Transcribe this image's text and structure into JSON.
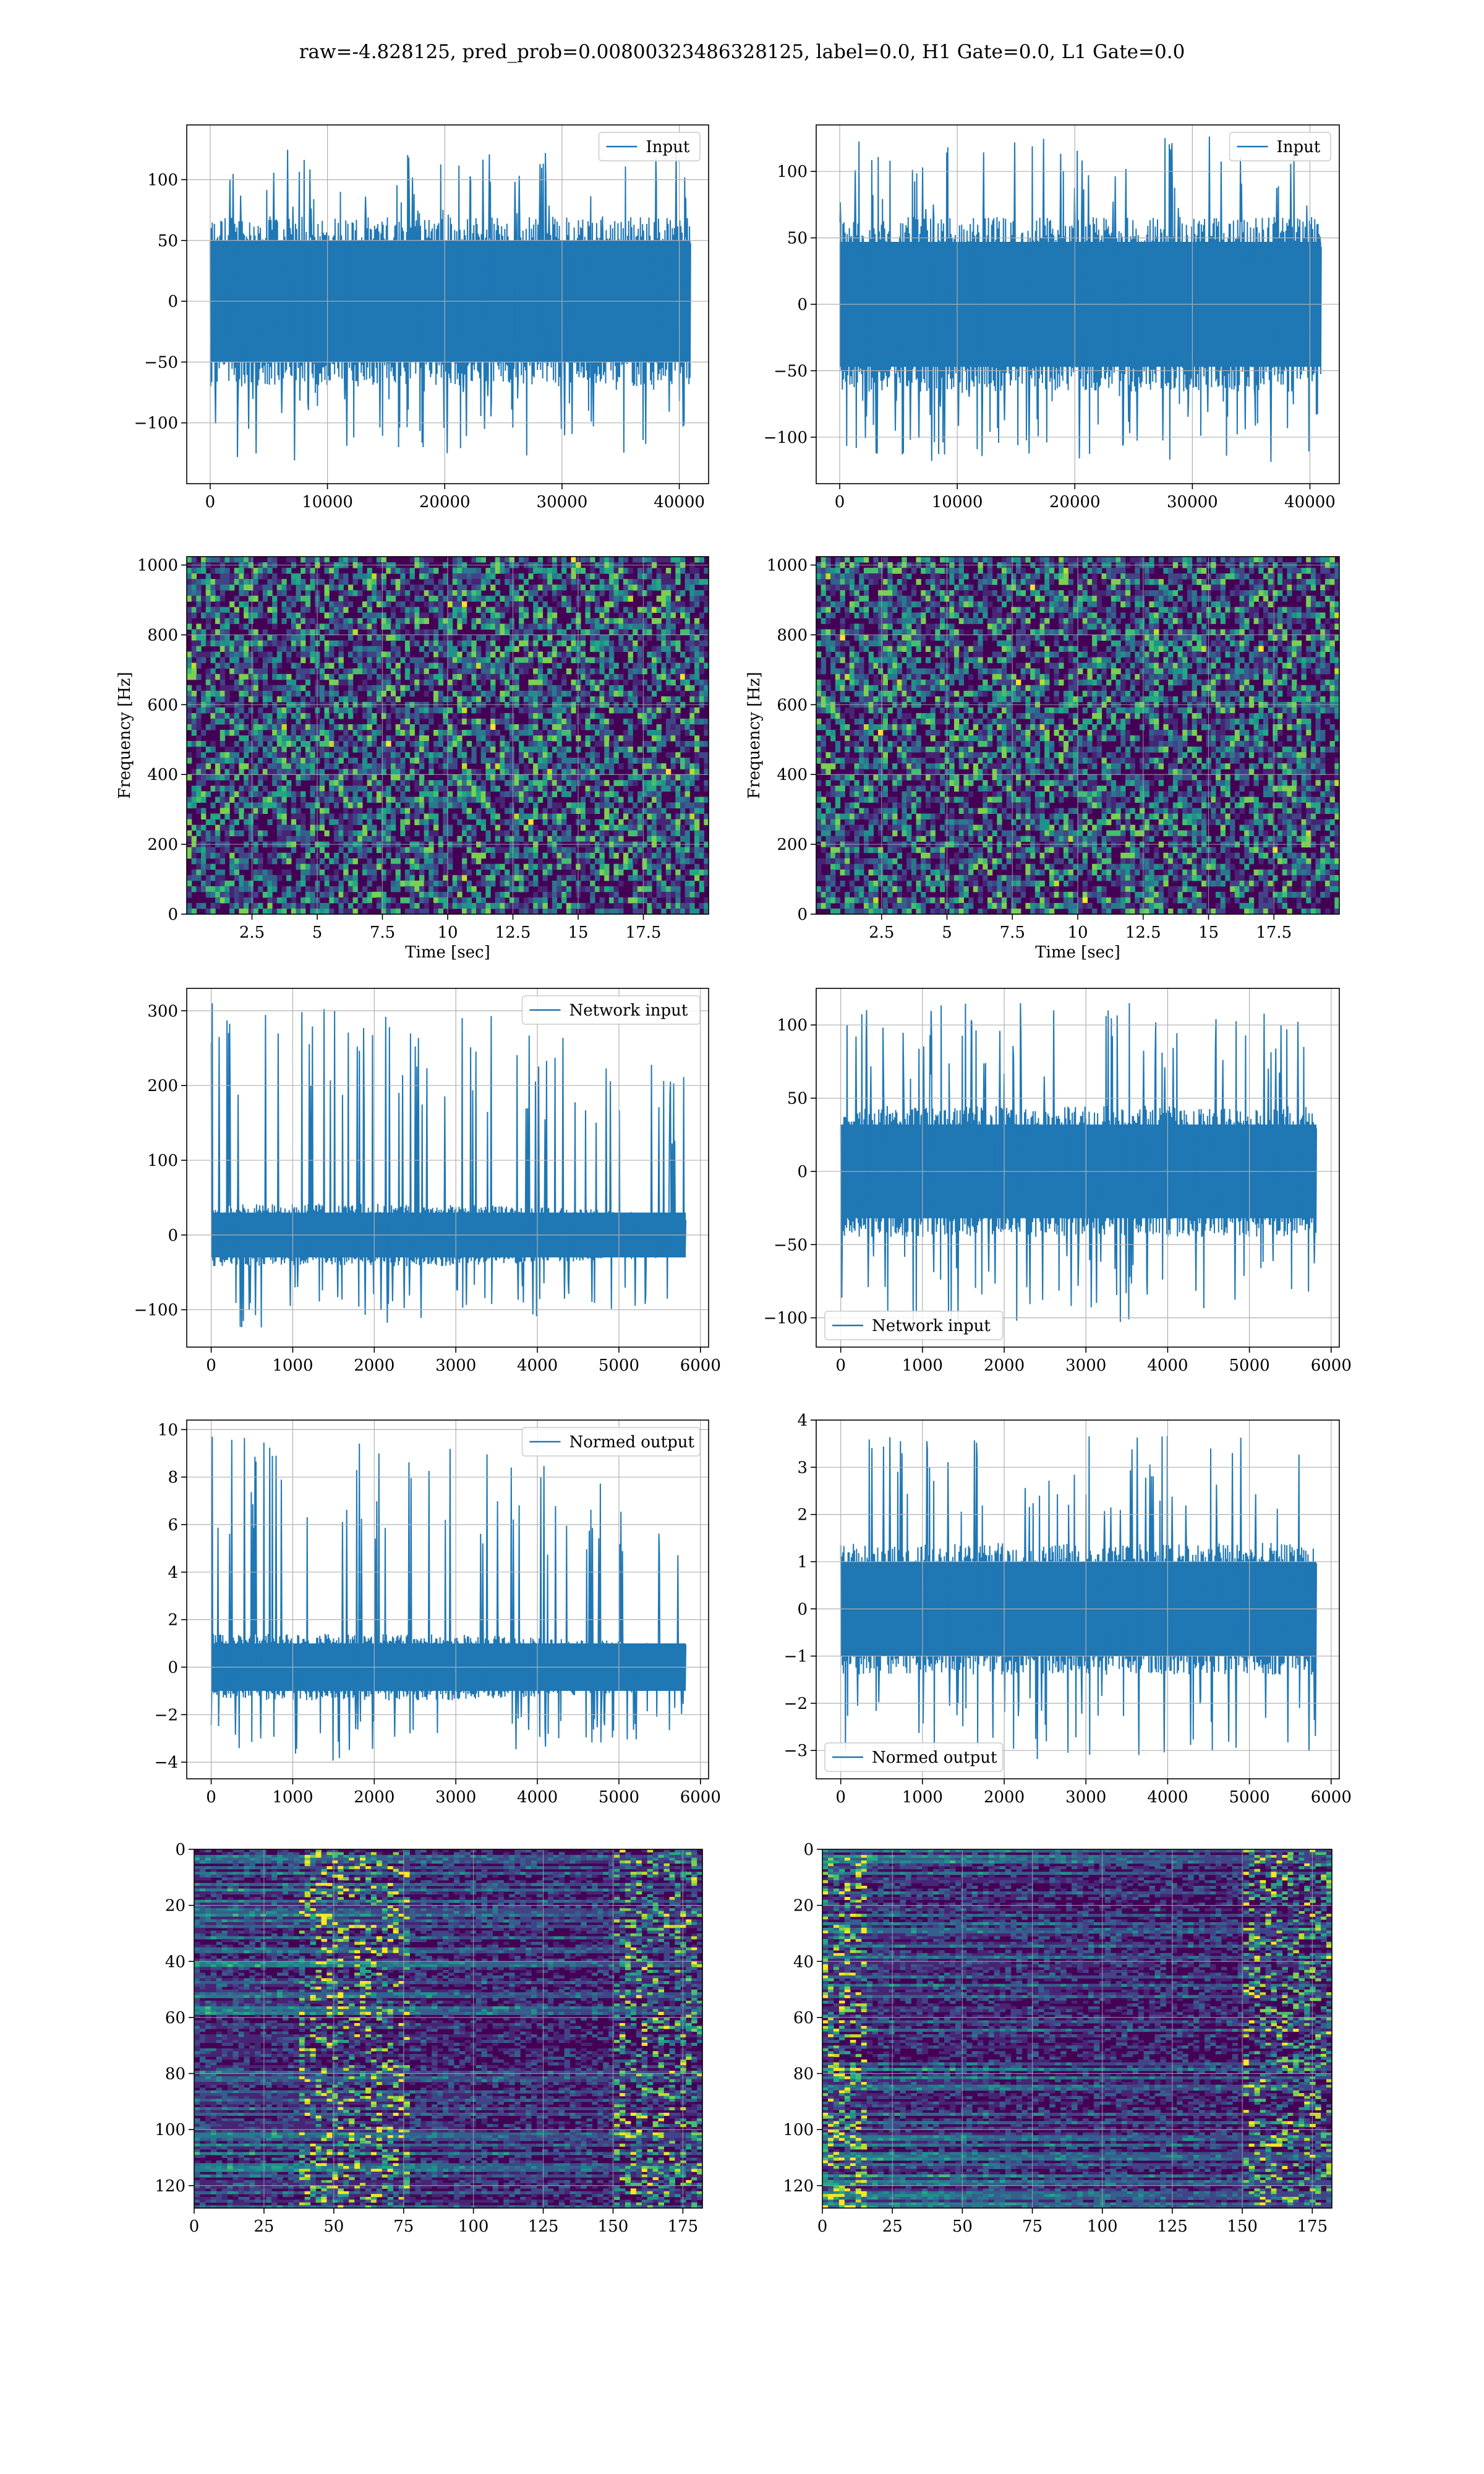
{
  "figure": {
    "suptitle": "raw=-4.828125, pred_prob=0.00800323486328125, label=0.0, H1 Gate=0.0, L1 Gate=0.0",
    "line_color": "#1f77b4",
    "grid_color": "#b0b0b0"
  },
  "chart_data": [
    {
      "type": "line",
      "panel": "r1-left",
      "legend": "Input",
      "legend_loc": "upper right",
      "xlim": [
        -2000,
        42500
      ],
      "ylim": [
        -150,
        145
      ],
      "xticks": [
        0,
        10000,
        20000,
        30000,
        40000
      ],
      "yticks": [
        -100,
        -50,
        0,
        50,
        100
      ],
      "xlabel": "",
      "ylabel": "",
      "x_range": [
        0,
        40960
      ],
      "band": [
        -50,
        50
      ],
      "spike_max": 125,
      "spike_min": -132,
      "trend": "flat"
    },
    {
      "type": "line",
      "panel": "r1-right",
      "legend": "Input",
      "legend_loc": "upper right",
      "xlim": [
        -2000,
        42500
      ],
      "ylim": [
        -135,
        135
      ],
      "xticks": [
        0,
        10000,
        20000,
        30000,
        40000
      ],
      "yticks": [
        -100,
        -50,
        0,
        50,
        100
      ],
      "xlabel": "",
      "ylabel": "",
      "x_range": [
        0,
        40960
      ],
      "band": [
        -47,
        47
      ],
      "spike_max": 130,
      "spike_min": -120,
      "trend": "flat"
    },
    {
      "type": "heatmap",
      "panel": "r2-left",
      "colormap": "viridis",
      "xlim": [
        0,
        20
      ],
      "ylim": [
        0,
        1024
      ],
      "xticks": [
        2.5,
        5.0,
        7.5,
        10.0,
        12.5,
        15.0,
        17.5
      ],
      "yticks": [
        0,
        200,
        400,
        600,
        800,
        1000
      ],
      "xlabel": "Time [sec]",
      "ylabel": "Frequency [Hz]"
    },
    {
      "type": "heatmap",
      "panel": "r2-right",
      "colormap": "viridis",
      "xlim": [
        0,
        20
      ],
      "ylim": [
        0,
        1024
      ],
      "xticks": [
        2.5,
        5.0,
        7.5,
        10.0,
        12.5,
        15.0,
        17.5
      ],
      "yticks": [
        0,
        200,
        400,
        600,
        800,
        1000
      ],
      "xlabel": "Time [sec]",
      "ylabel": "Frequency [Hz]"
    },
    {
      "type": "line",
      "panel": "r3-left",
      "legend": "Network input",
      "legend_loc": "upper right",
      "xlim": [
        -300,
        6100
      ],
      "ylim": [
        -150,
        330
      ],
      "xticks": [
        0,
        1000,
        2000,
        3000,
        4000,
        5000,
        6000
      ],
      "yticks": [
        -100,
        0,
        100,
        200,
        300
      ],
      "xlabel": "",
      "ylabel": "",
      "x_range": [
        0,
        5820
      ],
      "band": [
        -30,
        30
      ],
      "spike_max": 310,
      "spike_min": -125,
      "trend": "taper"
    },
    {
      "type": "line",
      "panel": "r3-right",
      "legend": "Network input",
      "legend_loc": "lower left",
      "xlim": [
        -300,
        6100
      ],
      "ylim": [
        -120,
        125
      ],
      "xticks": [
        0,
        1000,
        2000,
        3000,
        4000,
        5000,
        6000
      ],
      "yticks": [
        -100,
        -50,
        0,
        50,
        100
      ],
      "xlabel": "",
      "ylabel": "",
      "x_range": [
        0,
        5820
      ],
      "band": [
        -32,
        32
      ],
      "spike_max": 115,
      "spike_min": -105,
      "trend": "flat"
    },
    {
      "type": "line",
      "panel": "r4-left",
      "legend": "Normed output",
      "legend_loc": "upper right",
      "xlim": [
        -300,
        6100
      ],
      "ylim": [
        -4.7,
        10.4
      ],
      "xticks": [
        0,
        1000,
        2000,
        3000,
        4000,
        5000,
        6000
      ],
      "yticks": [
        -4,
        -2,
        0,
        2,
        4,
        6,
        8,
        10
      ],
      "xlabel": "",
      "ylabel": "",
      "x_range": [
        0,
        5820
      ],
      "band": [
        -1,
        1
      ],
      "spike_max": 9.7,
      "spike_min": -4,
      "trend": "taper"
    },
    {
      "type": "line",
      "panel": "r4-right",
      "legend": "Normed output",
      "legend_loc": "lower left",
      "xlim": [
        -300,
        6100
      ],
      "ylim": [
        -3.6,
        4.0
      ],
      "xticks": [
        0,
        1000,
        2000,
        3000,
        4000,
        5000,
        6000
      ],
      "yticks": [
        -3,
        -2,
        -1,
        0,
        1,
        2,
        3,
        4
      ],
      "xlabel": "",
      "ylabel": "",
      "x_range": [
        0,
        5820
      ],
      "band": [
        -1,
        1
      ],
      "spike_max": 3.7,
      "spike_min": -3.3,
      "trend": "flat"
    },
    {
      "type": "heatmap",
      "panel": "r5-left",
      "colormap": "viridis",
      "xlim": [
        0,
        182
      ],
      "ylim": [
        128,
        0
      ],
      "xticks": [
        0,
        25,
        50,
        75,
        100,
        125,
        150,
        175
      ],
      "yticks": [
        0,
        20,
        40,
        60,
        80,
        100,
        120
      ],
      "xlabel": "",
      "ylabel": ""
    },
    {
      "type": "heatmap",
      "panel": "r5-right",
      "colormap": "viridis",
      "xlim": [
        0,
        182
      ],
      "ylim": [
        128,
        0
      ],
      "xticks": [
        0,
        25,
        50,
        75,
        100,
        125,
        150,
        175
      ],
      "yticks": [
        0,
        20,
        40,
        60,
        80,
        100,
        120
      ],
      "xlabel": "",
      "ylabel": ""
    }
  ]
}
